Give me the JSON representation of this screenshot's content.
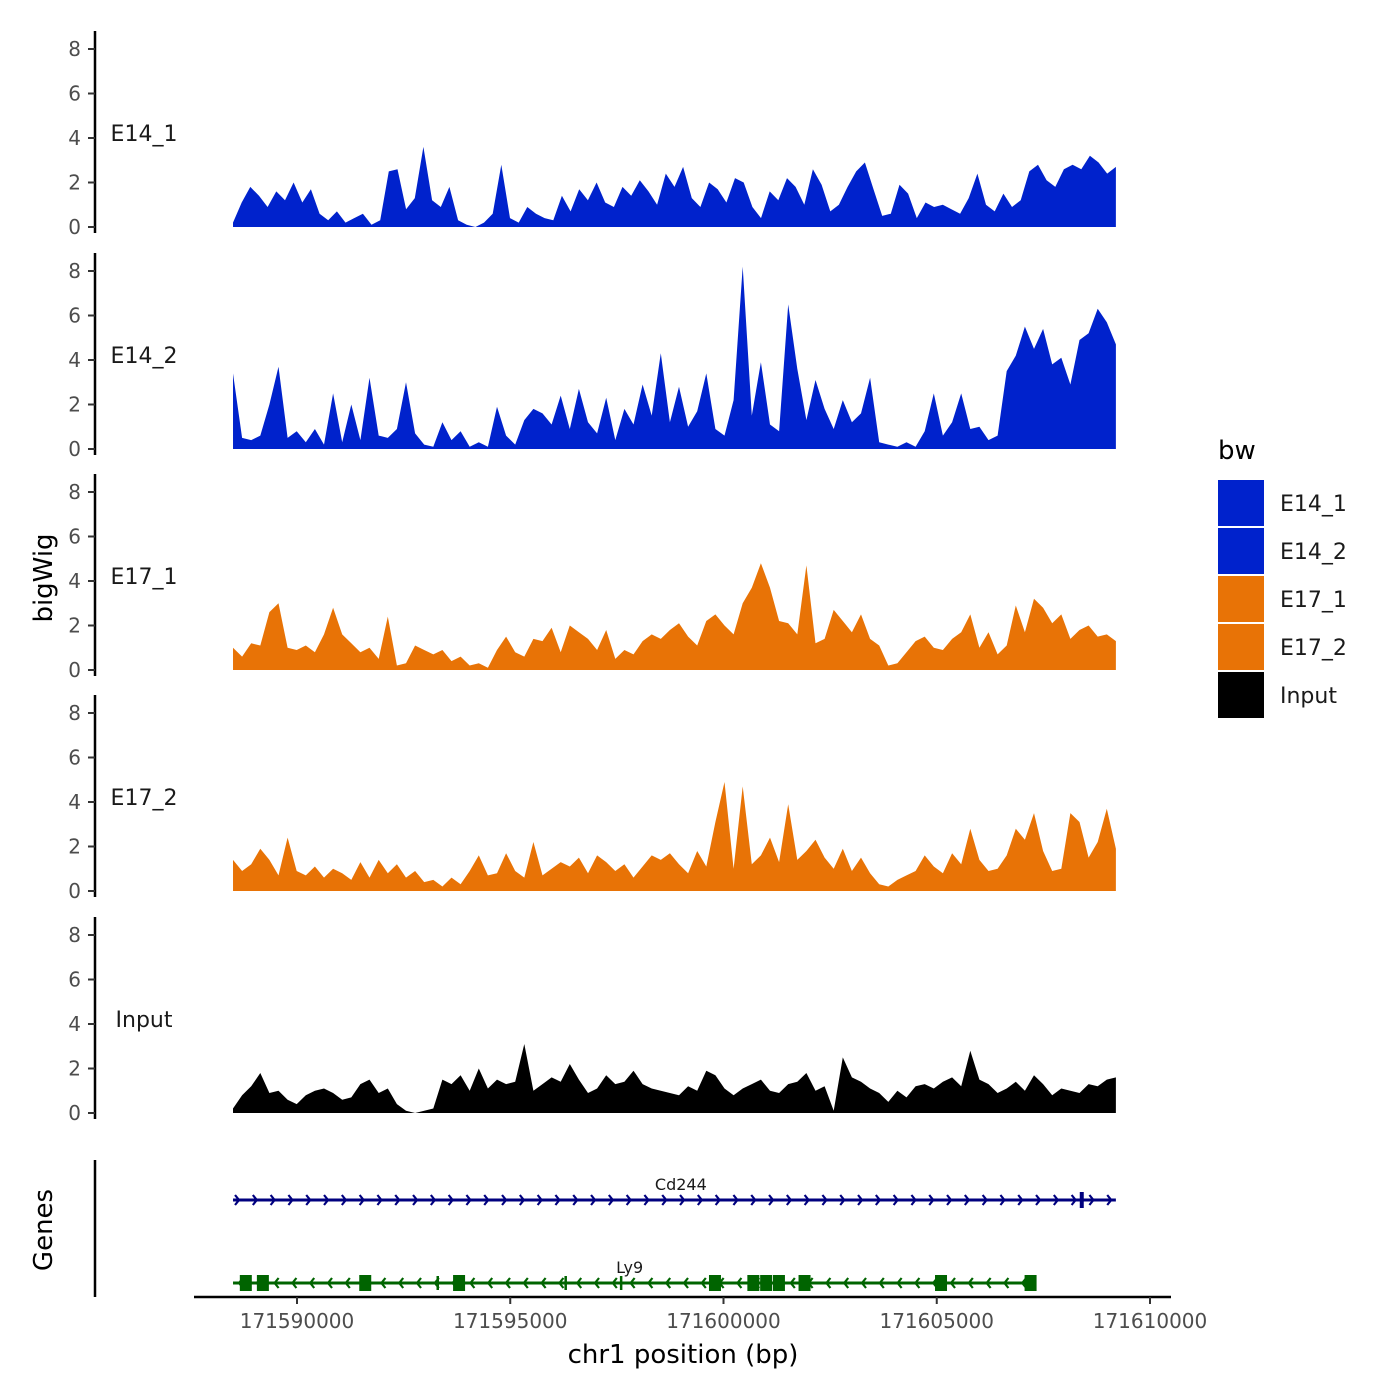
{
  "chart_data": {
    "type": "area",
    "xlabel": "chr1 position (bp)",
    "ylabel": "bigWig",
    "genes_label": "Genes",
    "xlim": [
      171586500,
      171610500
    ],
    "x_ticks": [
      171590000,
      171595000,
      171600000,
      171605000,
      171610000
    ],
    "x_tick_labels": [
      "171590000",
      "171595000",
      "171600000",
      "171605000",
      "171610000"
    ],
    "ylim": [
      0,
      8.8
    ],
    "y_ticks": [
      0,
      2,
      4,
      6,
      8
    ],
    "y_tick_labels": [
      "0",
      "2",
      "4",
      "6",
      "8"
    ],
    "legend": {
      "title": "bw",
      "entries": [
        {
          "label": "E14_1",
          "color": "#0022CC"
        },
        {
          "label": "E14_2",
          "color": "#0022CC"
        },
        {
          "label": "E17_1",
          "color": "#E87306"
        },
        {
          "label": "E17_2",
          "color": "#E87306"
        },
        {
          "label": "Input",
          "color": "#000000"
        }
      ]
    },
    "series": [
      {
        "name": "E14_1",
        "color": "#0022CC",
        "x_start": 171588500,
        "x_end": 171609200,
        "values": [
          0.2,
          1.1,
          1.8,
          1.4,
          0.9,
          1.6,
          1.2,
          2.0,
          1.1,
          1.7,
          0.6,
          0.3,
          0.7,
          0.2,
          0.4,
          0.6,
          0.1,
          0.3,
          2.5,
          2.6,
          0.8,
          1.3,
          3.6,
          1.2,
          0.9,
          1.8,
          0.3,
          0.1,
          0.0,
          0.2,
          0.6,
          2.8,
          0.4,
          0.2,
          0.9,
          0.6,
          0.4,
          0.3,
          1.4,
          0.7,
          1.7,
          1.2,
          2.0,
          1.1,
          0.9,
          1.8,
          1.4,
          2.1,
          1.6,
          1.0,
          2.4,
          1.8,
          2.7,
          1.3,
          0.9,
          2.0,
          1.7,
          1.1,
          2.2,
          2.0,
          0.9,
          0.4,
          1.6,
          1.2,
          2.2,
          1.8,
          1.0,
          2.6,
          1.9,
          0.7,
          1.0,
          1.8,
          2.5,
          2.9,
          1.7,
          0.5,
          0.6,
          1.9,
          1.5,
          0.4,
          1.1,
          0.9,
          1.0,
          0.8,
          0.6,
          1.3,
          2.4,
          1.0,
          0.7,
          1.5,
          0.9,
          1.2,
          2.5,
          2.8,
          2.1,
          1.8,
          2.6,
          2.8,
          2.6,
          3.2,
          2.9,
          2.4,
          2.7
        ]
      },
      {
        "name": "E14_2",
        "color": "#0022CC",
        "x_start": 171588500,
        "x_end": 171609200,
        "values": [
          3.4,
          0.5,
          0.4,
          0.6,
          2.0,
          3.7,
          0.5,
          0.8,
          0.3,
          0.9,
          0.2,
          2.5,
          0.3,
          2.0,
          0.4,
          3.2,
          0.6,
          0.5,
          0.9,
          3.0,
          0.7,
          0.2,
          0.1,
          1.2,
          0.4,
          0.8,
          0.1,
          0.3,
          0.1,
          1.9,
          0.6,
          0.2,
          1.3,
          1.8,
          1.6,
          1.1,
          2.4,
          0.9,
          2.7,
          1.2,
          0.7,
          2.3,
          0.4,
          1.8,
          1.1,
          2.9,
          1.5,
          4.3,
          1.2,
          2.8,
          1.0,
          1.7,
          3.4,
          0.9,
          0.6,
          2.2,
          8.2,
          1.5,
          3.9,
          1.1,
          0.8,
          6.5,
          3.6,
          1.3,
          3.1,
          1.8,
          0.9,
          2.2,
          1.2,
          1.6,
          3.2,
          0.3,
          0.2,
          0.1,
          0.3,
          0.1,
          0.8,
          2.5,
          0.6,
          1.2,
          2.5,
          0.9,
          1.0,
          0.4,
          0.6,
          3.5,
          4.2,
          5.5,
          4.5,
          5.4,
          3.8,
          4.1,
          2.9,
          4.9,
          5.2,
          6.3,
          5.7,
          4.7
        ]
      },
      {
        "name": "E17_1",
        "color": "#E87306",
        "x_start": 171588500,
        "x_end": 171609200,
        "values": [
          1.0,
          0.6,
          1.2,
          1.1,
          2.6,
          3.0,
          1.0,
          0.9,
          1.1,
          0.8,
          1.6,
          2.8,
          1.6,
          1.2,
          0.8,
          1.0,
          0.5,
          2.4,
          0.2,
          0.3,
          1.1,
          0.9,
          0.7,
          0.9,
          0.4,
          0.6,
          0.2,
          0.3,
          0.1,
          0.9,
          1.5,
          0.8,
          0.6,
          1.4,
          1.3,
          1.9,
          0.8,
          2.0,
          1.7,
          1.4,
          0.9,
          1.8,
          0.5,
          0.9,
          0.7,
          1.3,
          1.6,
          1.4,
          1.8,
          2.1,
          1.5,
          1.1,
          2.2,
          2.5,
          2.0,
          1.6,
          3.0,
          3.7,
          4.8,
          3.7,
          2.2,
          2.1,
          1.6,
          4.7,
          1.2,
          1.4,
          2.7,
          2.2,
          1.7,
          2.5,
          1.4,
          1.1,
          0.2,
          0.3,
          0.8,
          1.3,
          1.5,
          1.0,
          0.9,
          1.4,
          1.7,
          2.5,
          1.0,
          1.7,
          0.7,
          1.1,
          2.9,
          1.7,
          3.2,
          2.8,
          2.1,
          2.5,
          1.4,
          1.8,
          2.0,
          1.5,
          1.6,
          1.3
        ]
      },
      {
        "name": "E17_2",
        "color": "#E87306",
        "x_start": 171588500,
        "x_end": 171609200,
        "values": [
          1.4,
          0.9,
          1.2,
          1.9,
          1.4,
          0.7,
          2.4,
          0.9,
          0.7,
          1.1,
          0.6,
          1.0,
          0.8,
          0.5,
          1.3,
          0.6,
          1.4,
          0.8,
          1.2,
          0.6,
          0.9,
          0.4,
          0.5,
          0.2,
          0.6,
          0.3,
          0.9,
          1.6,
          0.7,
          0.8,
          1.7,
          0.9,
          0.6,
          2.2,
          0.7,
          1.0,
          1.3,
          1.1,
          1.5,
          0.8,
          1.6,
          1.3,
          0.9,
          1.2,
          0.6,
          1.1,
          1.6,
          1.4,
          1.7,
          1.2,
          0.8,
          1.8,
          1.1,
          3.1,
          4.9,
          1.0,
          4.7,
          1.2,
          1.6,
          2.4,
          1.3,
          3.9,
          1.4,
          1.8,
          2.3,
          1.5,
          1.0,
          1.9,
          0.9,
          1.5,
          0.8,
          0.3,
          0.2,
          0.5,
          0.7,
          0.9,
          1.6,
          1.1,
          0.8,
          1.7,
          1.2,
          2.8,
          1.4,
          0.9,
          1.0,
          1.6,
          2.8,
          2.3,
          3.5,
          1.8,
          0.9,
          1.0,
          3.5,
          3.1,
          1.5,
          2.2,
          3.7,
          1.9
        ]
      },
      {
        "name": "Input",
        "color": "#000000",
        "x_start": 171588500,
        "x_end": 171609200,
        "values": [
          0.2,
          0.8,
          1.2,
          1.8,
          0.9,
          1.0,
          0.6,
          0.4,
          0.8,
          1.0,
          1.1,
          0.9,
          0.6,
          0.7,
          1.3,
          1.5,
          0.9,
          1.1,
          0.4,
          0.1,
          0.0,
          0.1,
          0.2,
          1.5,
          1.3,
          1.7,
          1.0,
          2.0,
          1.1,
          1.5,
          1.3,
          1.4,
          3.1,
          1.0,
          1.3,
          1.6,
          1.4,
          2.2,
          1.5,
          0.9,
          1.1,
          1.7,
          1.3,
          1.4,
          1.9,
          1.3,
          1.1,
          1.0,
          0.9,
          0.8,
          1.2,
          1.0,
          1.9,
          1.7,
          1.1,
          0.8,
          1.1,
          1.3,
          1.5,
          1.0,
          0.9,
          1.3,
          1.4,
          1.8,
          1.0,
          1.2,
          0.1,
          2.5,
          1.6,
          1.4,
          1.1,
          0.9,
          0.5,
          1.0,
          0.7,
          1.2,
          1.3,
          1.1,
          1.4,
          1.6,
          1.2,
          2.8,
          1.5,
          1.3,
          0.9,
          1.1,
          1.4,
          1.0,
          1.7,
          1.3,
          0.8,
          1.1,
          1.0,
          0.9,
          1.3,
          1.2,
          1.5,
          1.6
        ]
      }
    ],
    "genes": [
      {
        "name": "Cd244",
        "strand": "+",
        "color": "#00007F",
        "start": 171588500,
        "end": 171609200,
        "label_pos": 171599000,
        "exons": [
          171608400
        ]
      },
      {
        "name": "Ly9",
        "strand": "-",
        "color": "#006400",
        "start": 171588500,
        "end": 171607200,
        "label_pos": 171597800,
        "exons": [
          171588800,
          171589200,
          171591600,
          171593800,
          171599800,
          171600700,
          171601000,
          171601300,
          171601900,
          171605100,
          171607200
        ],
        "marks": [
          171593300,
          171596300,
          171597600
        ]
      }
    ]
  }
}
